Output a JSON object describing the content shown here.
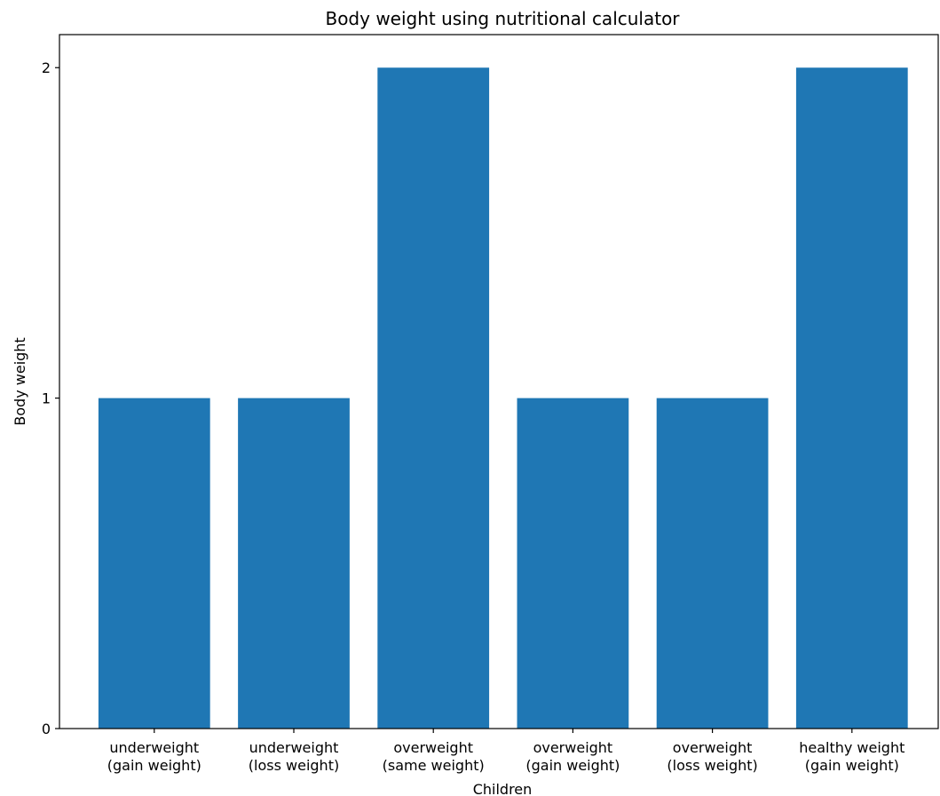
{
  "chart_data": {
    "type": "bar",
    "title": "Body weight using nutritional calculator",
    "xlabel": "Children",
    "ylabel": "Body weight",
    "categories": [
      [
        "underweight",
        "(gain weight)"
      ],
      [
        "underweight",
        "(loss weight)"
      ],
      [
        "overweight",
        "(same weight)"
      ],
      [
        "overweight",
        "(gain weight)"
      ],
      [
        "overweight",
        "(loss weight)"
      ],
      [
        "healthy weight",
        "(gain weight)"
      ]
    ],
    "values": [
      1,
      1,
      2,
      1,
      1,
      2
    ],
    "yticks": [
      0,
      1,
      2
    ],
    "ylim": [
      0,
      2.1
    ],
    "grid": false,
    "bar_color": "#1f77b4"
  }
}
